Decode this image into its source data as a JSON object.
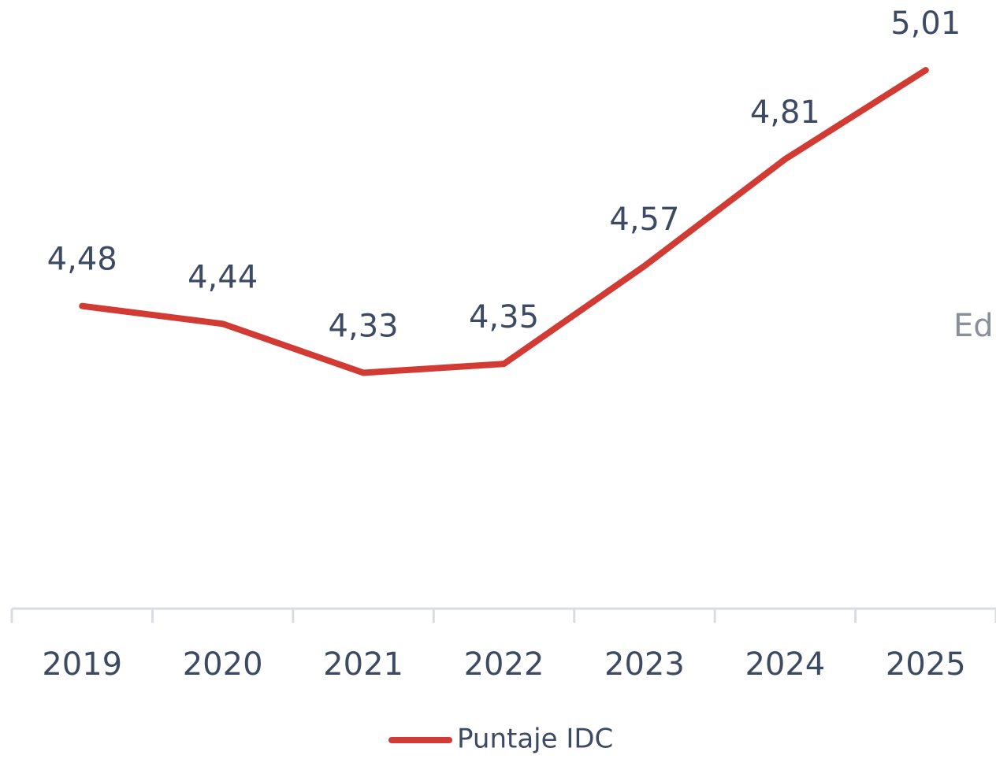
{
  "chart_data": {
    "type": "line",
    "categories": [
      "2019",
      "2020",
      "2021",
      "2022",
      "2023",
      "2024",
      "2025"
    ],
    "series": [
      {
        "name": "Puntaje IDC",
        "color": "#d13b34",
        "values": [
          4.48,
          4.44,
          4.33,
          4.35,
          4.57,
          4.81,
          5.01
        ],
        "value_labels": [
          "4,48",
          "4,44",
          "4,33",
          "4,35",
          "4,57",
          "4,81",
          "5,01"
        ]
      }
    ],
    "ylim": [
      3.8,
      5.15
    ],
    "annotations": [
      "Ed"
    ],
    "legend": "bottom"
  }
}
